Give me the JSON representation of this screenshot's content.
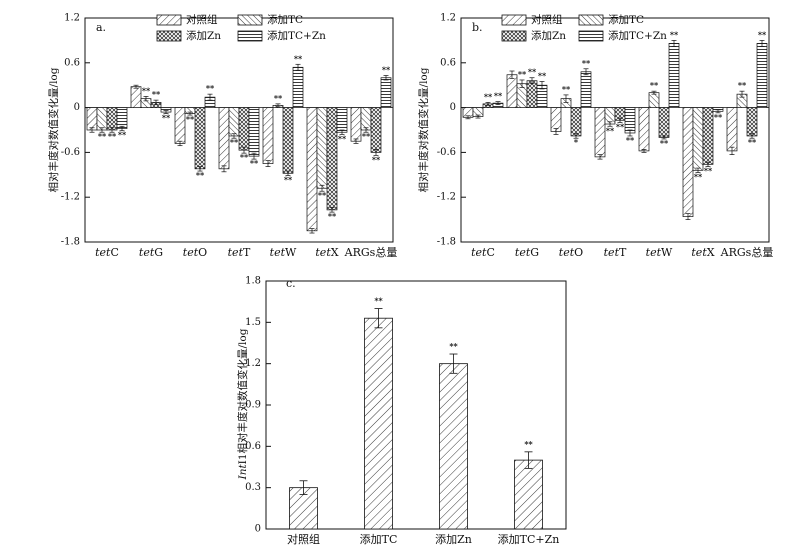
{
  "legend_labels": [
    "对照组",
    "添加TC",
    "添加Zn",
    "添加TC+Zn"
  ],
  "chart_data": [
    {
      "id": "a",
      "panel_label": "a.",
      "type": "bar",
      "ylabel": "相对丰度对数值变化量/log",
      "ylim": [
        -1.8,
        1.2
      ],
      "yticks": [
        "1.2",
        "0.6",
        "0",
        "-0.6",
        "-1.2",
        "-1.8"
      ],
      "categories": [
        {
          "italic": "tet",
          "rest": "C"
        },
        {
          "italic": "tet",
          "rest": "G"
        },
        {
          "italic": "tet",
          "rest": "O"
        },
        {
          "italic": "tet",
          "rest": "T"
        },
        {
          "italic": "tet",
          "rest": "W"
        },
        {
          "italic": "tet",
          "rest": "X"
        },
        {
          "italic": "",
          "rest": "ARGs总量"
        }
      ],
      "series": [
        {
          "name": "对照组",
          "values": [
            -0.3,
            0.28,
            -0.48,
            -0.82,
            -0.75,
            -1.65,
            -0.45
          ],
          "err": [
            0.03,
            0.02,
            0.03,
            0.04,
            0.04,
            0.03,
            0.03
          ],
          "sig": [
            "",
            "",
            "",
            "",
            "",
            "",
            ""
          ]
        },
        {
          "name": "添加TC",
          "values": [
            -0.3,
            0.12,
            -0.08,
            -0.38,
            0.03,
            -1.08,
            -0.3
          ],
          "err": [
            0.03,
            0.03,
            0.02,
            0.03,
            0.02,
            0.04,
            0.03
          ],
          "sig": [
            "**",
            "**",
            "**",
            "**",
            "**",
            "**",
            "**"
          ]
        },
        {
          "name": "添加Zn",
          "values": [
            -0.3,
            0.07,
            -0.82,
            -0.57,
            -0.88,
            -1.37,
            -0.6
          ],
          "err": [
            0.03,
            0.03,
            0.03,
            0.04,
            0.03,
            0.03,
            0.04
          ],
          "sig": [
            "**",
            "**",
            "**",
            "**",
            "**",
            "**",
            "**"
          ]
        },
        {
          "name": "添加TC+Zn",
          "values": [
            -0.28,
            -0.06,
            0.14,
            -0.65,
            0.54,
            -0.33,
            0.4
          ],
          "err": [
            0.03,
            0.02,
            0.04,
            0.04,
            0.04,
            0.03,
            0.03
          ],
          "sig": [
            "**",
            "**",
            "**",
            "**",
            "**",
            "**",
            "**"
          ]
        }
      ]
    },
    {
      "id": "b",
      "panel_label": "b.",
      "type": "bar",
      "ylabel": "相对丰度对数值变化量/log",
      "ylim": [
        -1.8,
        1.2
      ],
      "yticks": [
        "1.2",
        "0.6",
        "0",
        "-0.6",
        "-1.2",
        "-1.8"
      ],
      "categories": [
        {
          "italic": "tet",
          "rest": "C"
        },
        {
          "italic": "tet",
          "rest": "G"
        },
        {
          "italic": "tet",
          "rest": "O"
        },
        {
          "italic": "tet",
          "rest": "T"
        },
        {
          "italic": "tet",
          "rest": "W"
        },
        {
          "italic": "tet",
          "rest": "X"
        },
        {
          "italic": "",
          "rest": "ARGs总量"
        }
      ],
      "series": [
        {
          "name": "对照组",
          "values": [
            -0.13,
            0.44,
            -0.32,
            -0.66,
            -0.58,
            -1.46,
            -0.58
          ],
          "err": [
            0.02,
            0.05,
            0.04,
            0.03,
            0.02,
            0.04,
            0.05
          ],
          "sig": [
            "",
            "",
            "",
            "",
            "",
            "",
            ""
          ]
        },
        {
          "name": "添加TC",
          "values": [
            -0.12,
            0.32,
            0.12,
            -0.22,
            0.2,
            -0.84,
            0.18
          ],
          "err": [
            0.02,
            0.05,
            0.05,
            0.03,
            0.02,
            0.03,
            0.04
          ],
          "sig": [
            "",
            "**",
            "**",
            "**",
            "**",
            "**",
            "**"
          ]
        },
        {
          "name": "添加Zn",
          "values": [
            0.05,
            0.36,
            -0.38,
            -0.17,
            -0.4,
            -0.76,
            -0.38
          ],
          "err": [
            0.02,
            0.04,
            0.03,
            0.03,
            0.02,
            0.03,
            0.03
          ],
          "sig": [
            "**",
            "**",
            "*",
            "**",
            "**",
            "**",
            "**"
          ]
        },
        {
          "name": "添加TC+Zn",
          "values": [
            0.06,
            0.3,
            0.48,
            -0.34,
            0.86,
            -0.05,
            0.86
          ],
          "err": [
            0.02,
            0.05,
            0.04,
            0.04,
            0.04,
            0.02,
            0.04
          ],
          "sig": [
            "**",
            "**",
            "**",
            "**",
            "**",
            "**",
            "**"
          ]
        }
      ]
    },
    {
      "id": "c",
      "panel_label": "c.",
      "type": "bar",
      "ylabel_italic": "Int",
      "ylabel": "I1相对丰度对数值变化量/log",
      "ylim": [
        0,
        1.8
      ],
      "yticks": [
        "1.8",
        "1.5",
        "1.2",
        "0.9",
        "0.6",
        "0.3",
        "0"
      ],
      "categories": [
        "对照组",
        "添加TC",
        "添加Zn",
        "添加TC+Zn"
      ],
      "values": [
        0.3,
        1.53,
        1.2,
        0.5
      ],
      "err": [
        0.05,
        0.07,
        0.07,
        0.06
      ],
      "sig": [
        "",
        "**",
        "**",
        "**"
      ]
    }
  ]
}
